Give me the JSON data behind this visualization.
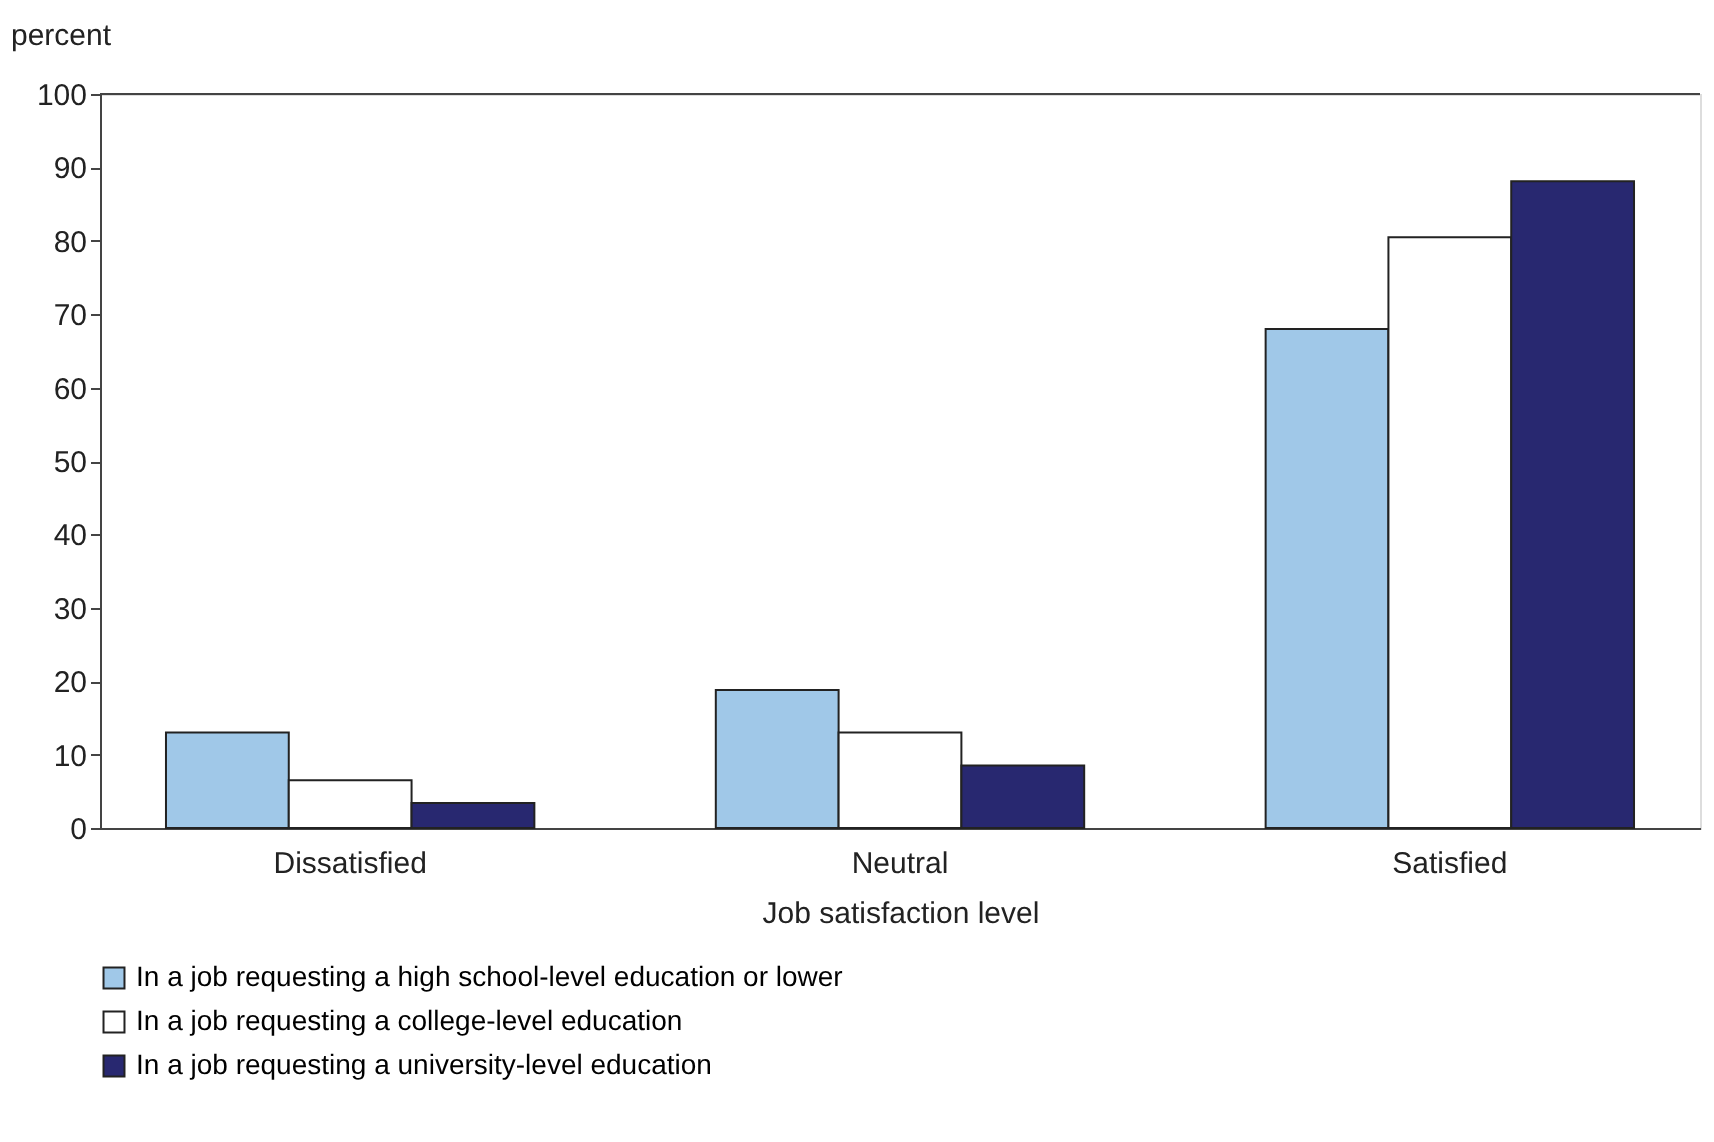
{
  "chart_data": {
    "type": "bar",
    "ylabel": "percent",
    "xlabel": "Job satisfaction level",
    "categories": [
      "Dissatisfied",
      "Neutral",
      "Satisfied"
    ],
    "series": [
      {
        "name": "In a job requesting a high school-level education or lower",
        "color": "#a0c8e8",
        "values": [
          13.0,
          18.8,
          68.0
        ]
      },
      {
        "name": "In a job requesting a college-level education",
        "color": "#ffffff",
        "values": [
          6.5,
          13.0,
          80.5
        ]
      },
      {
        "name": "In a job requesting a university-level education",
        "color": "#282870",
        "values": [
          3.4,
          8.5,
          88.1
        ]
      }
    ],
    "ylim": [
      0,
      100
    ],
    "yticks": [
      0,
      10,
      20,
      30,
      40,
      50,
      60,
      70,
      80,
      90,
      100
    ],
    "grid": false,
    "legend": "bottom"
  }
}
